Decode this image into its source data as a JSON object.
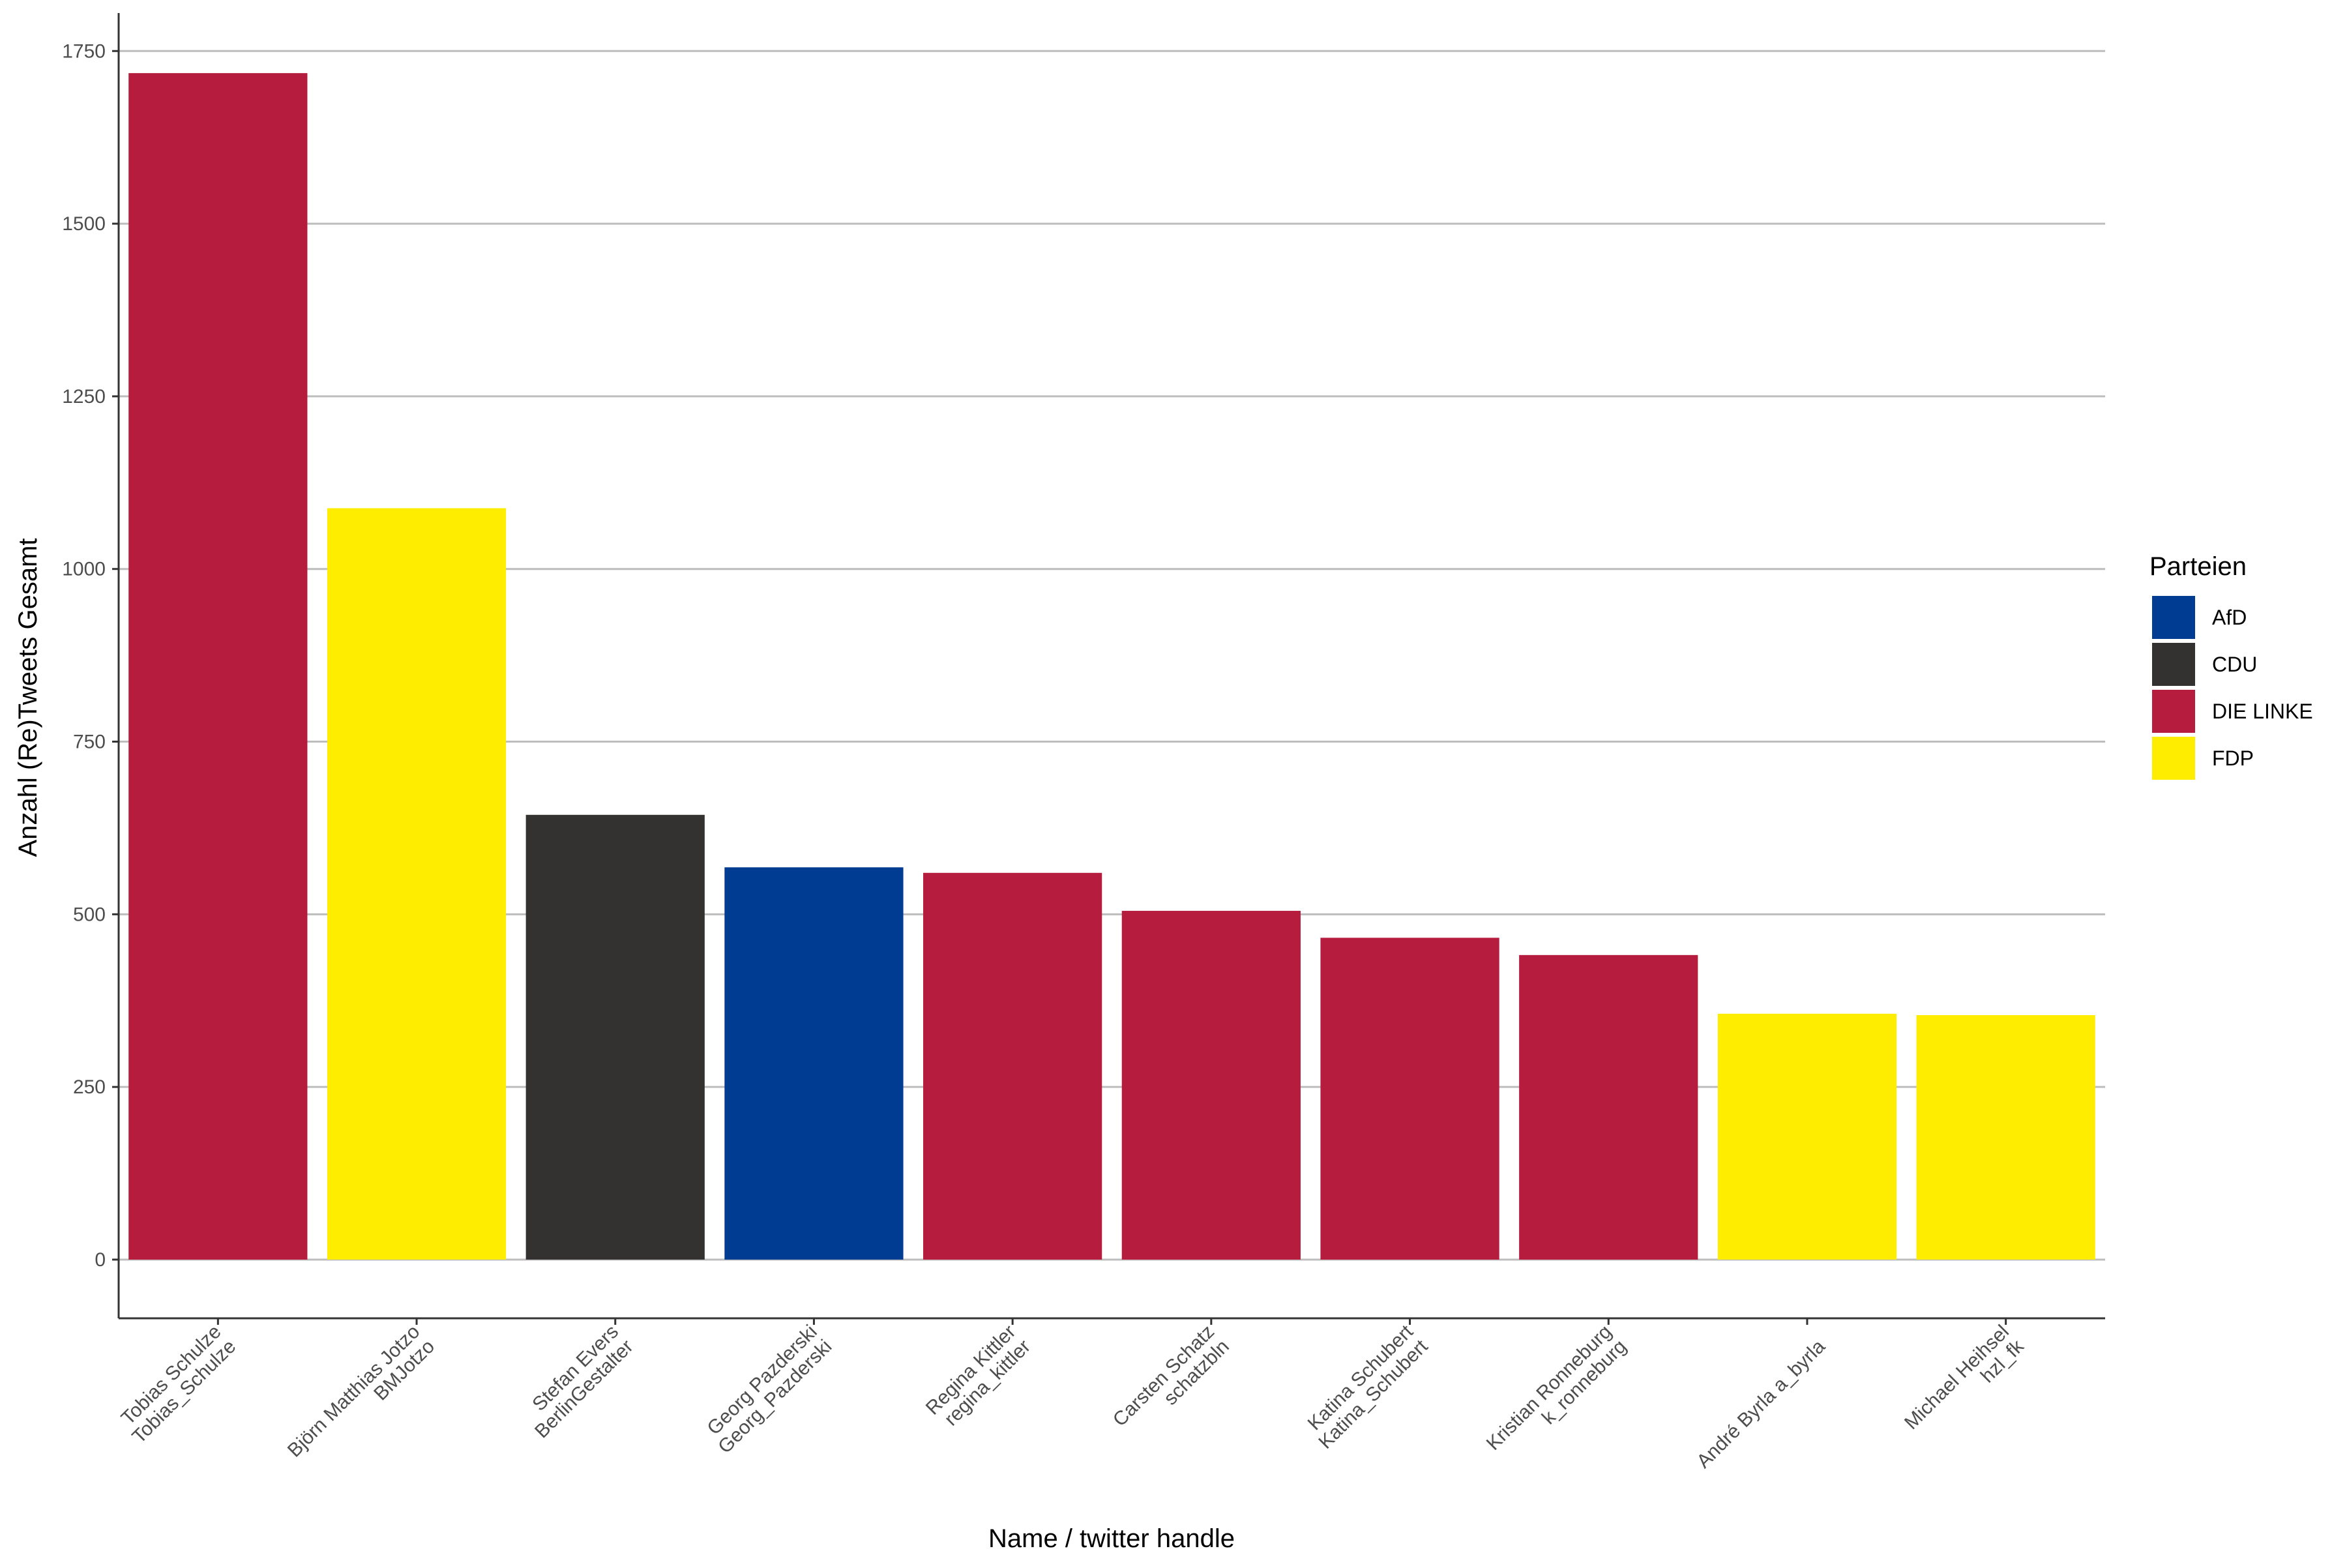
{
  "chart_data": {
    "type": "bar",
    "categories": [
      [
        "Tobias Schulze",
        "Tobias_Schulze"
      ],
      [
        "Björn Matthias Jotzo",
        "BMJotzo"
      ],
      [
        "Stefan Evers",
        "BerlinGestalter"
      ],
      [
        "Georg Pazderski",
        "Georg_Pazderski"
      ],
      [
        "Regina Kittler",
        "regina_kittler"
      ],
      [
        "Carsten Schatz",
        "schatzbln"
      ],
      [
        "Katina Schubert",
        "Katina_Schubert"
      ],
      [
        "Kristian Ronneburg",
        "k_ronneburg"
      ],
      [
        "André Byrla a_byrla"
      ],
      [
        "Michael Heihsel",
        "hzl_fk"
      ]
    ],
    "values": [
      1718,
      1088,
      644,
      568,
      560,
      505,
      466,
      441,
      356,
      354
    ],
    "parties": [
      "DIE LINKE",
      "FDP",
      "CDU",
      "AfD",
      "DIE LINKE",
      "DIE LINKE",
      "DIE LINKE",
      "DIE LINKE",
      "FDP",
      "FDP"
    ],
    "xlabel": "Name / twitter handle",
    "ylabel": "Anzahl (Re)Tweets Gesamt",
    "ylim": [
      -85,
      1805
    ],
    "yticks": [
      0,
      250,
      500,
      750,
      1000,
      1250,
      1500,
      1750
    ],
    "grid": "horizontal major",
    "legend": {
      "title": "Parteien",
      "position": "right",
      "entries": [
        {
          "label": "AfD",
          "color": "#003C91"
        },
        {
          "label": "CDU",
          "color": "#333231"
        },
        {
          "label": "DIE LINKE",
          "color": "#B61C3E"
        },
        {
          "label": "FDP",
          "color": "#FFED00"
        }
      ]
    }
  }
}
